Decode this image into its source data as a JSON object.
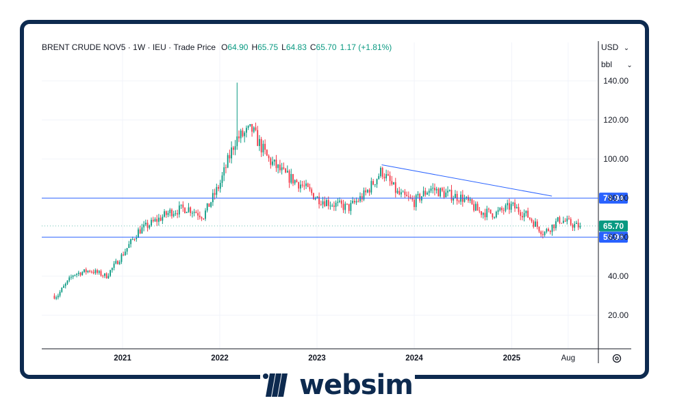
{
  "header": {
    "symbol": "BRENT CRUDE NOV5",
    "sep1": " · ",
    "interval": "1W",
    "sep2": " · ",
    "exchange": "IEU",
    "sep3": " · ",
    "price_type": "Trade Price",
    "o_label": "O",
    "o_value": "64.90",
    "h_label": "H",
    "h_value": "65.75",
    "l_label": "L",
    "l_value": "64.83",
    "c_label": "C",
    "c_value": "65.70",
    "change": "1.17 (+1.81%)"
  },
  "currency": "USD",
  "unit": "bbl",
  "brand": "websim",
  "colors": {
    "up": "#089981",
    "down": "#f23645",
    "line": "#2962ff",
    "tag_blue": "#2962ff",
    "tag_green": "#089981",
    "frame": "#0d2a4f"
  },
  "chart_data": {
    "type": "candlestick",
    "title": "BRENT CRUDE NOV5",
    "x": [
      "2020-05",
      "2020-07",
      "2020-09",
      "2020-11",
      "2021-01",
      "2021-03",
      "2021-05",
      "2021-07",
      "2021-09",
      "2021-11",
      "2022-01",
      "2022-03",
      "2022-05",
      "2022-07",
      "2022-09",
      "2022-11",
      "2023-01",
      "2023-03",
      "2023-05",
      "2023-07",
      "2023-09",
      "2023-11",
      "2024-01",
      "2024-03",
      "2024-05",
      "2024-07",
      "2024-09",
      "2024-11",
      "2025-01",
      "2025-03",
      "2025-05",
      "2025-07",
      "2025-09"
    ],
    "close": [
      30,
      41,
      43,
      40,
      51,
      63,
      68,
      73,
      75,
      71,
      87,
      110,
      115,
      100,
      92,
      87,
      80,
      77,
      75,
      82,
      94,
      82,
      78,
      85,
      82,
      80,
      73,
      72,
      76,
      71,
      62,
      69,
      65.7
    ],
    "ylim": [
      0,
      150
    ],
    "y_ticks": [
      20,
      40,
      60,
      80,
      100,
      120,
      140
    ],
    "y_tick_labels": [
      "20.00",
      "40.00",
      "60.00",
      "80.00",
      "100.00",
      "120.00",
      "140.00"
    ],
    "x_tick_labels": [
      "2021",
      "2022",
      "2023",
      "2024",
      "2025",
      "Aug"
    ],
    "horizontal_lines": [
      {
        "value": 79.94,
        "label": "79.94"
      },
      {
        "value": 59.96,
        "label": "59.96"
      }
    ],
    "trendline": {
      "from": [
        "2023-09",
        97
      ],
      "to": [
        "2025-06",
        81
      ]
    },
    "last_price": {
      "value": 65.7,
      "label": "65.70"
    },
    "peak": {
      "date": "2022-03",
      "high": 139.1
    }
  }
}
